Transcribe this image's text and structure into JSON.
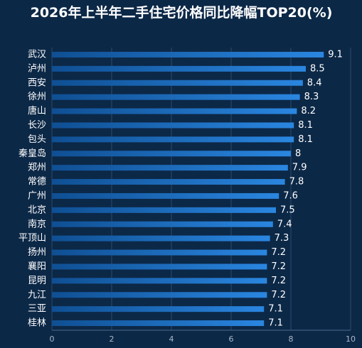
{
  "chart_data": {
    "type": "hbar",
    "title": "2026年上半年二手住宅价格同比降幅TOP20(%)",
    "categories": [
      "武汉",
      "泸州",
      "西安",
      "徐州",
      "唐山",
      "长沙",
      "包头",
      "秦皇岛",
      "郑州",
      "常德",
      "广州",
      "北京",
      "南京",
      "平顶山",
      "扬州",
      "襄阳",
      "昆明",
      "九江",
      "三亚",
      "桂林"
    ],
    "values": [
      9.1,
      8.5,
      8.4,
      8.3,
      8.2,
      8.1,
      8.1,
      8,
      7.9,
      7.8,
      7.6,
      7.5,
      7.4,
      7.3,
      7.2,
      7.2,
      7.2,
      7.2,
      7.1,
      7.1
    ],
    "color": "#1f74cf",
    "xlim": [
      0,
      10
    ],
    "xticks": [
      0,
      2,
      4,
      6,
      8,
      10
    ],
    "grid": true
  }
}
